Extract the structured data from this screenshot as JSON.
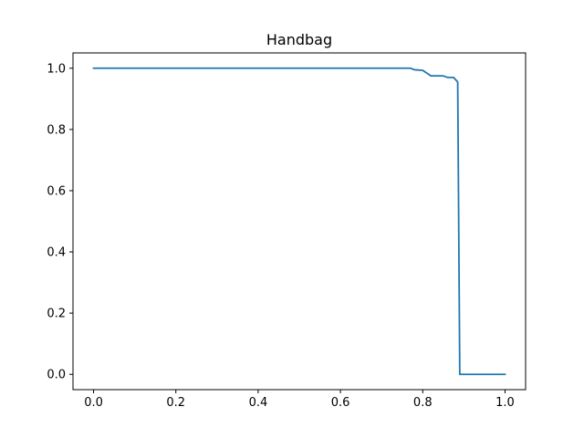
{
  "chart_data": {
    "type": "line",
    "title": "Handbag",
    "xlabel": "",
    "ylabel": "",
    "xlim": [
      -0.05,
      1.05
    ],
    "ylim": [
      -0.05,
      1.05
    ],
    "xticks": [
      "0.0",
      "0.2",
      "0.4",
      "0.6",
      "0.8",
      "1.0"
    ],
    "yticks": [
      "0.0",
      "0.2",
      "0.4",
      "0.6",
      "0.8",
      "1.0"
    ],
    "grid": false,
    "series": [
      {
        "color": "#1f77b4",
        "x": [
          0.0,
          0.77,
          0.78,
          0.8,
          0.82,
          0.85,
          0.86,
          0.875,
          0.885,
          0.89,
          1.0
        ],
        "y": [
          1.0,
          1.0,
          0.995,
          0.993,
          0.975,
          0.975,
          0.97,
          0.97,
          0.955,
          0.0,
          0.0
        ]
      }
    ]
  }
}
